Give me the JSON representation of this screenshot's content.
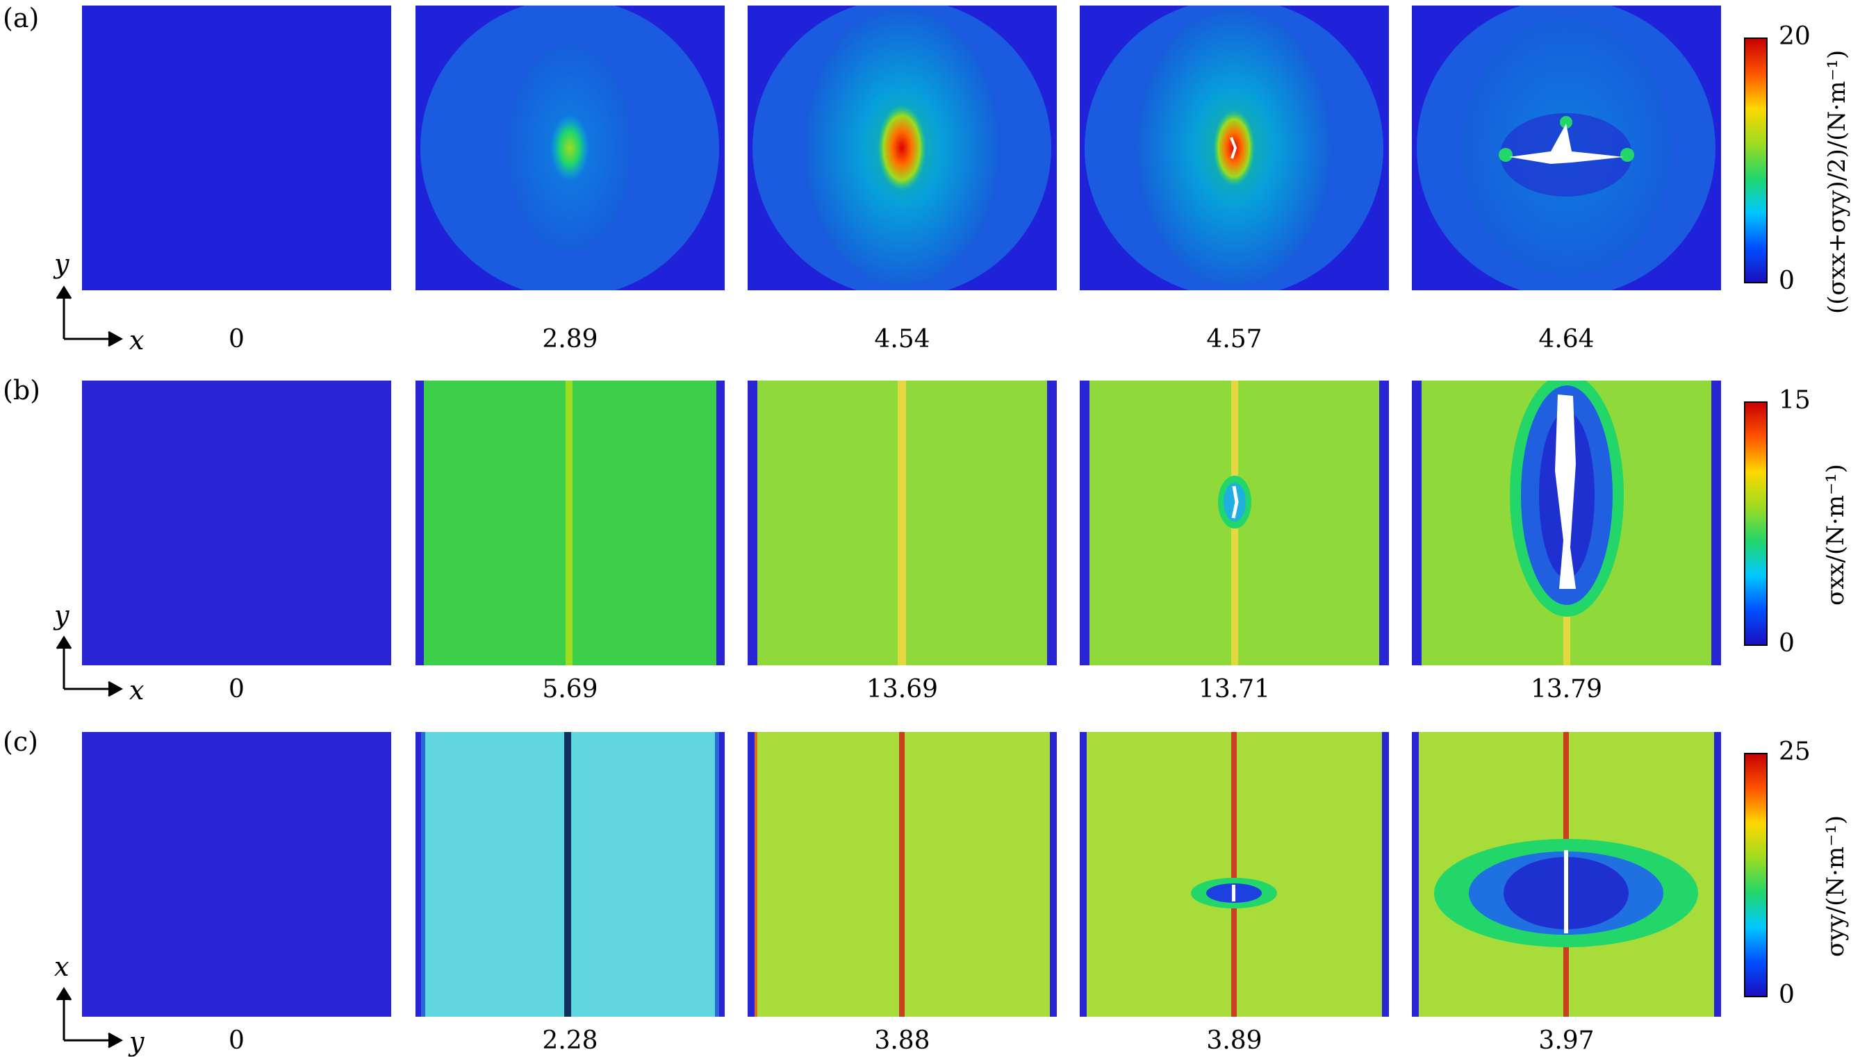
{
  "rows": [
    {
      "letter": "(a)",
      "axis_vertical": "y",
      "axis_horizontal": "x",
      "captions": [
        "0",
        "2.89",
        "4.54",
        "4.57",
        "4.64"
      ],
      "colorbar": {
        "max": "20",
        "min": "0",
        "title": "((σxx+σyy)/2)/(N·m⁻¹)"
      }
    },
    {
      "letter": "(b)",
      "axis_vertical": "y",
      "axis_horizontal": "x",
      "captions": [
        "0",
        "5.69",
        "13.69",
        "13.71",
        "13.79"
      ],
      "colorbar": {
        "max": "15",
        "min": "0",
        "title": "σxx/(N·m⁻¹)"
      }
    },
    {
      "letter": "(c)",
      "axis_vertical": "x",
      "axis_horizontal": "y",
      "captions": [
        "0",
        "2.28",
        "3.88",
        "3.89",
        "3.97"
      ],
      "colorbar": {
        "max": "25",
        "min": "0",
        "title": "σyy/(N·m⁻¹)"
      }
    }
  ],
  "colormap": [
    "#1a0fc0",
    "#0050ff",
    "#00c8ff",
    "#22d66a",
    "#9edc20",
    "#ffd700",
    "#ff5500",
    "#c80000"
  ],
  "colors": {
    "background_blue": "#1f22d8",
    "row_a_field": "#1a55d8",
    "row_b_field_low": "#3ecf4a",
    "row_b_field_high": "#8fd93a",
    "row_c_field_low": "#5fd6e0",
    "row_c_field_high": "#a8dc3a",
    "fracture": "#ffffff"
  }
}
